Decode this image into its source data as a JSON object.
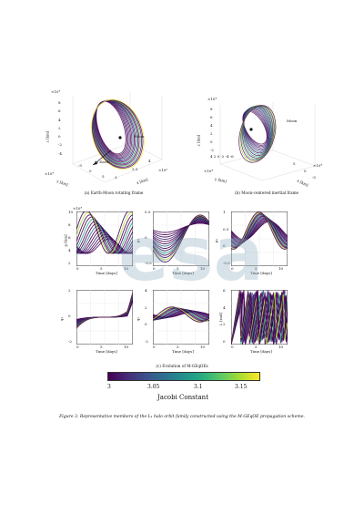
{
  "figure": {
    "panel_a": {
      "caption": "(a) Earth-Moon rotating frame",
      "z_label": "z [km]",
      "x_label": "x [km]",
      "y_label": "y [km]",
      "z_scale": "×10⁴",
      "x_scale": "×10⁵",
      "y_scale": "×10⁴",
      "z_ticks": [
        "8",
        "6",
        "4",
        "2",
        "0",
        "-2",
        "-4"
      ],
      "x_ticks": [
        "3",
        "3.5",
        "4"
      ],
      "y_ticks": [
        "-5",
        "0",
        "5"
      ],
      "annotations": [
        "Moon",
        "to Earth"
      ]
    },
    "panel_b": {
      "caption": "(b) Moon-centered inertial frame",
      "z_label": "z [km]",
      "x_label": "x [km]",
      "y_label": "y [km]",
      "z_scale": "×10⁴",
      "x_scale": "×10⁴",
      "y_scale": "×10⁴",
      "z_ticks": [
        "8",
        "6",
        "4",
        "2",
        "0",
        "-2"
      ],
      "x_ticks": [
        "5",
        "0",
        "-5"
      ],
      "y_ticks": [
        "4",
        "2",
        "0",
        "-2",
        "-4",
        "-6"
      ],
      "annotations": [
        "Moon"
      ]
    },
    "panel_c": {
      "caption": "(c) Evolution of M-GEqOEs",
      "time_label": "Time [days]",
      "time_ticks": [
        "0",
        "5",
        "10"
      ],
      "subplots": [
        {
          "ylabel": "p [km]",
          "scale": "×10⁴",
          "yticks": [
            "10",
            "8",
            "6",
            "4",
            "2"
          ]
        },
        {
          "ylabel": "p₁",
          "scale": "",
          "yticks": [
            "0.5",
            "0",
            "-0.5"
          ]
        },
        {
          "ylabel": "p₂",
          "scale": "",
          "yticks": [
            "1",
            "0.5",
            "0",
            "-0.5"
          ]
        },
        {
          "ylabel": "q₁",
          "scale": "",
          "yticks": [
            "2",
            "0",
            "-2"
          ]
        },
        {
          "ylabel": "q₂",
          "scale": "",
          "yticks": [
            "4",
            "2",
            "0",
            "-2"
          ]
        },
        {
          "ylabel": "L [rad]",
          "scale": "",
          "yticks": [
            "6",
            "4",
            "2",
            "0"
          ]
        }
      ]
    },
    "colorbar": {
      "label": "Jacobi Constant",
      "ticks": [
        "3",
        "3.05",
        "3.1",
        "3.15"
      ],
      "colors": [
        "#440154",
        "#472c7a",
        "#3b518b",
        "#2c718e",
        "#21908d",
        "#27ad81",
        "#5cc863",
        "#aadc32",
        "#fde725"
      ]
    },
    "watermark": "esa",
    "caption": "Figure 3. Representative members of the L₁ halo orbit family constructed using the M-GEqOE propagation scheme."
  }
}
